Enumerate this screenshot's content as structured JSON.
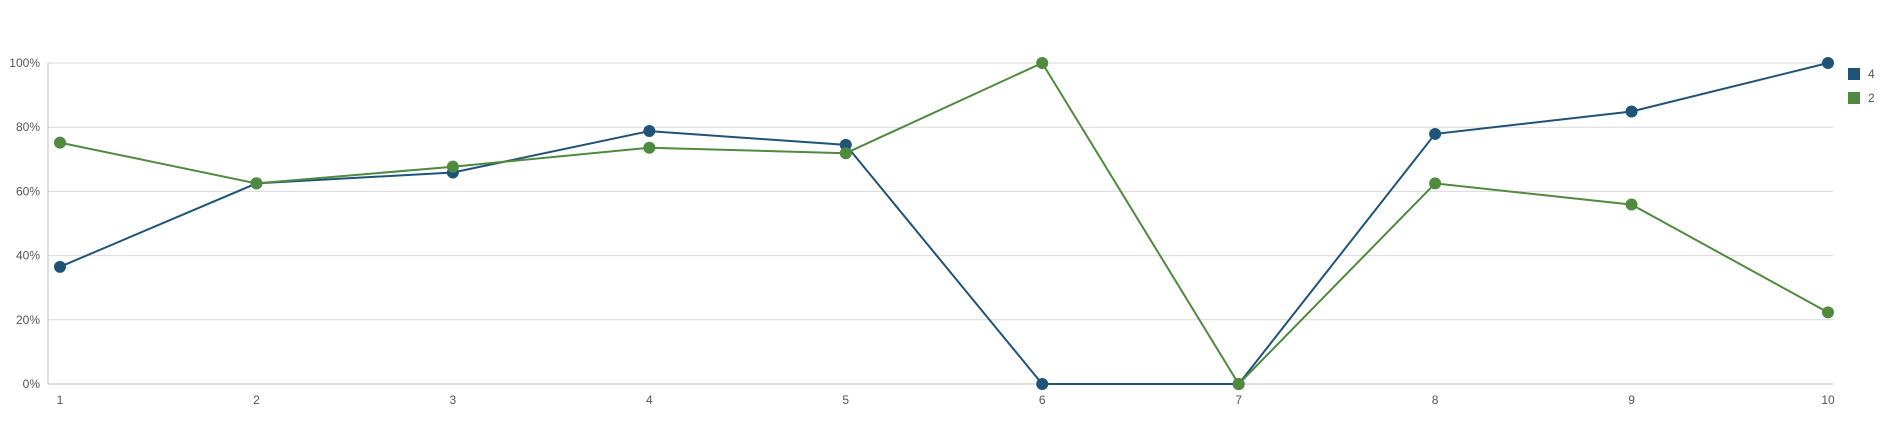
{
  "chart_data": {
    "type": "line",
    "title": "",
    "xlabel": "",
    "ylabel": "",
    "categories": [
      "1",
      "2",
      "3",
      "4",
      "5",
      "6",
      "7",
      "8",
      "9",
      "10"
    ],
    "y_ticks": [
      "0%",
      "20%",
      "40%",
      "60%",
      "80%",
      "100%"
    ],
    "ylim": [
      0,
      100
    ],
    "grid": true,
    "legend_position": "top-right",
    "series": [
      {
        "name": "4",
        "color": "#1f5478",
        "values": [
          36.5,
          62.5,
          65.9,
          78.8,
          74.5,
          0,
          0,
          77.9,
          84.9,
          100
        ]
      },
      {
        "name": "2",
        "color": "#4f8a3e",
        "values": [
          75.2,
          62.5,
          67.7,
          73.6,
          71.9,
          100,
          0,
          62.5,
          55.9,
          22.3
        ]
      }
    ]
  }
}
